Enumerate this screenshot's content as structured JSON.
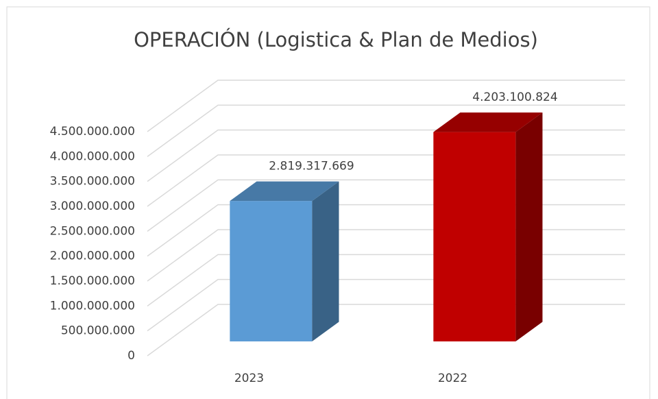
{
  "chart_data": {
    "type": "bar3d",
    "title": "OPERACIÓN (Logistica & Plan de Medios)",
    "categories": [
      "2023",
      "2022"
    ],
    "values": [
      2819317669,
      4203100824
    ],
    "value_labels": [
      "2.819.317.669",
      "4.203.100.824"
    ],
    "colors": [
      "#5b9bd5",
      "#c00000"
    ],
    "ylim": [
      0,
      4500000000
    ],
    "yticks": [
      {
        "value": 0,
        "label": "0"
      },
      {
        "value": 500000000,
        "label": "500.000.000"
      },
      {
        "value": 1000000000,
        "label": "1.000.000.000"
      },
      {
        "value": 1500000000,
        "label": "1.500.000.000"
      },
      {
        "value": 2000000000,
        "label": "2.000.000.000"
      },
      {
        "value": 2500000000,
        "label": "2.500.000.000"
      },
      {
        "value": 3000000000,
        "label": "3.000.000.000"
      },
      {
        "value": 3500000000,
        "label": "3.500.000.000"
      },
      {
        "value": 4000000000,
        "label": "4.000.000.000"
      },
      {
        "value": 4500000000,
        "label": "4.500.000.000"
      }
    ],
    "grid": true
  }
}
